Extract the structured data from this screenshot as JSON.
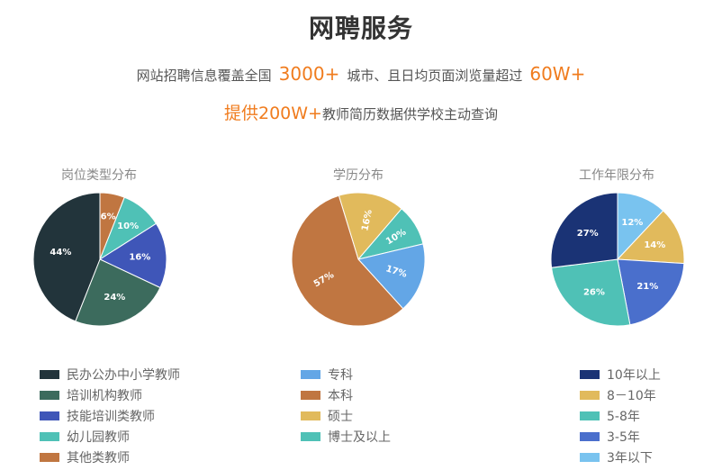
{
  "header": {
    "title": "网聘服务",
    "line1_pre": "网站招聘信息覆盖全国",
    "line1_num1": "3000+",
    "line1_mid": "城市、且日均页面浏览量超过",
    "line1_num2": "60W+",
    "line2_hl": "提供200W+",
    "line2_rest": "教师简历数据供学校主动查询"
  },
  "chart_data": [
    {
      "type": "pie",
      "title": "岗位类型分布",
      "start_angle_deg": 0,
      "slices": [
        {
          "label": "其他类教师",
          "value": 6,
          "color": "#c07641",
          "display": "6%"
        },
        {
          "label": "幼儿园教师",
          "value": 10,
          "color": "#4fc1b6",
          "display": "10%"
        },
        {
          "label": "技能培训类教师",
          "value": 16,
          "color": "#3f56b8",
          "display": "16%"
        },
        {
          "label": "培训机构教师",
          "value": 24,
          "color": "#3c6b5d",
          "display": "24%"
        },
        {
          "label": "民办公办中小学教师",
          "value": 44,
          "color": "#22343b",
          "display": "44%"
        }
      ],
      "legend": [
        "民办公办中小学教师",
        "培训机构教师",
        "技能培训类教师",
        "幼儿园教师",
        "其他类教师"
      ]
    },
    {
      "type": "pie",
      "title": "学历分布",
      "start_angle_deg": -17,
      "slices": [
        {
          "label": "硕士",
          "value": 16,
          "color": "#e1ba5c",
          "display": "16%"
        },
        {
          "label": "博士及以上",
          "value": 10,
          "color": "#4fc1b6",
          "display": "10%"
        },
        {
          "label": "专科",
          "value": 17,
          "color": "#63a6e6",
          "display": "17%"
        },
        {
          "label": "本科",
          "value": 57,
          "color": "#c07641",
          "display": "57%"
        }
      ],
      "legend": [
        "专科",
        "本科",
        "硕士",
        "博士及以上"
      ]
    },
    {
      "type": "pie",
      "title": "工作年限分布",
      "start_angle_deg": 0,
      "slices": [
        {
          "label": "3年以下",
          "value": 12,
          "color": "#79c3ef",
          "display": "12%"
        },
        {
          "label": "8-10年",
          "value": 14,
          "color": "#e1ba5c",
          "display": "14%"
        },
        {
          "label": "3-5年",
          "value": 21,
          "color": "#4a6fcc",
          "display": "21%"
        },
        {
          "label": "5-8年",
          "value": 26,
          "color": "#4fc1b6",
          "display": "26%"
        },
        {
          "label": "10年以上",
          "value": 27,
          "color": "#1a3375",
          "display": "27%"
        }
      ],
      "legend": [
        "10年以上",
        "8－10年",
        "5-8年",
        "3-5年",
        "3年以下"
      ],
      "legend_colors": [
        "#1a3375",
        "#e1ba5c",
        "#4fc1b6",
        "#4a6fcc",
        "#79c3ef"
      ]
    }
  ]
}
